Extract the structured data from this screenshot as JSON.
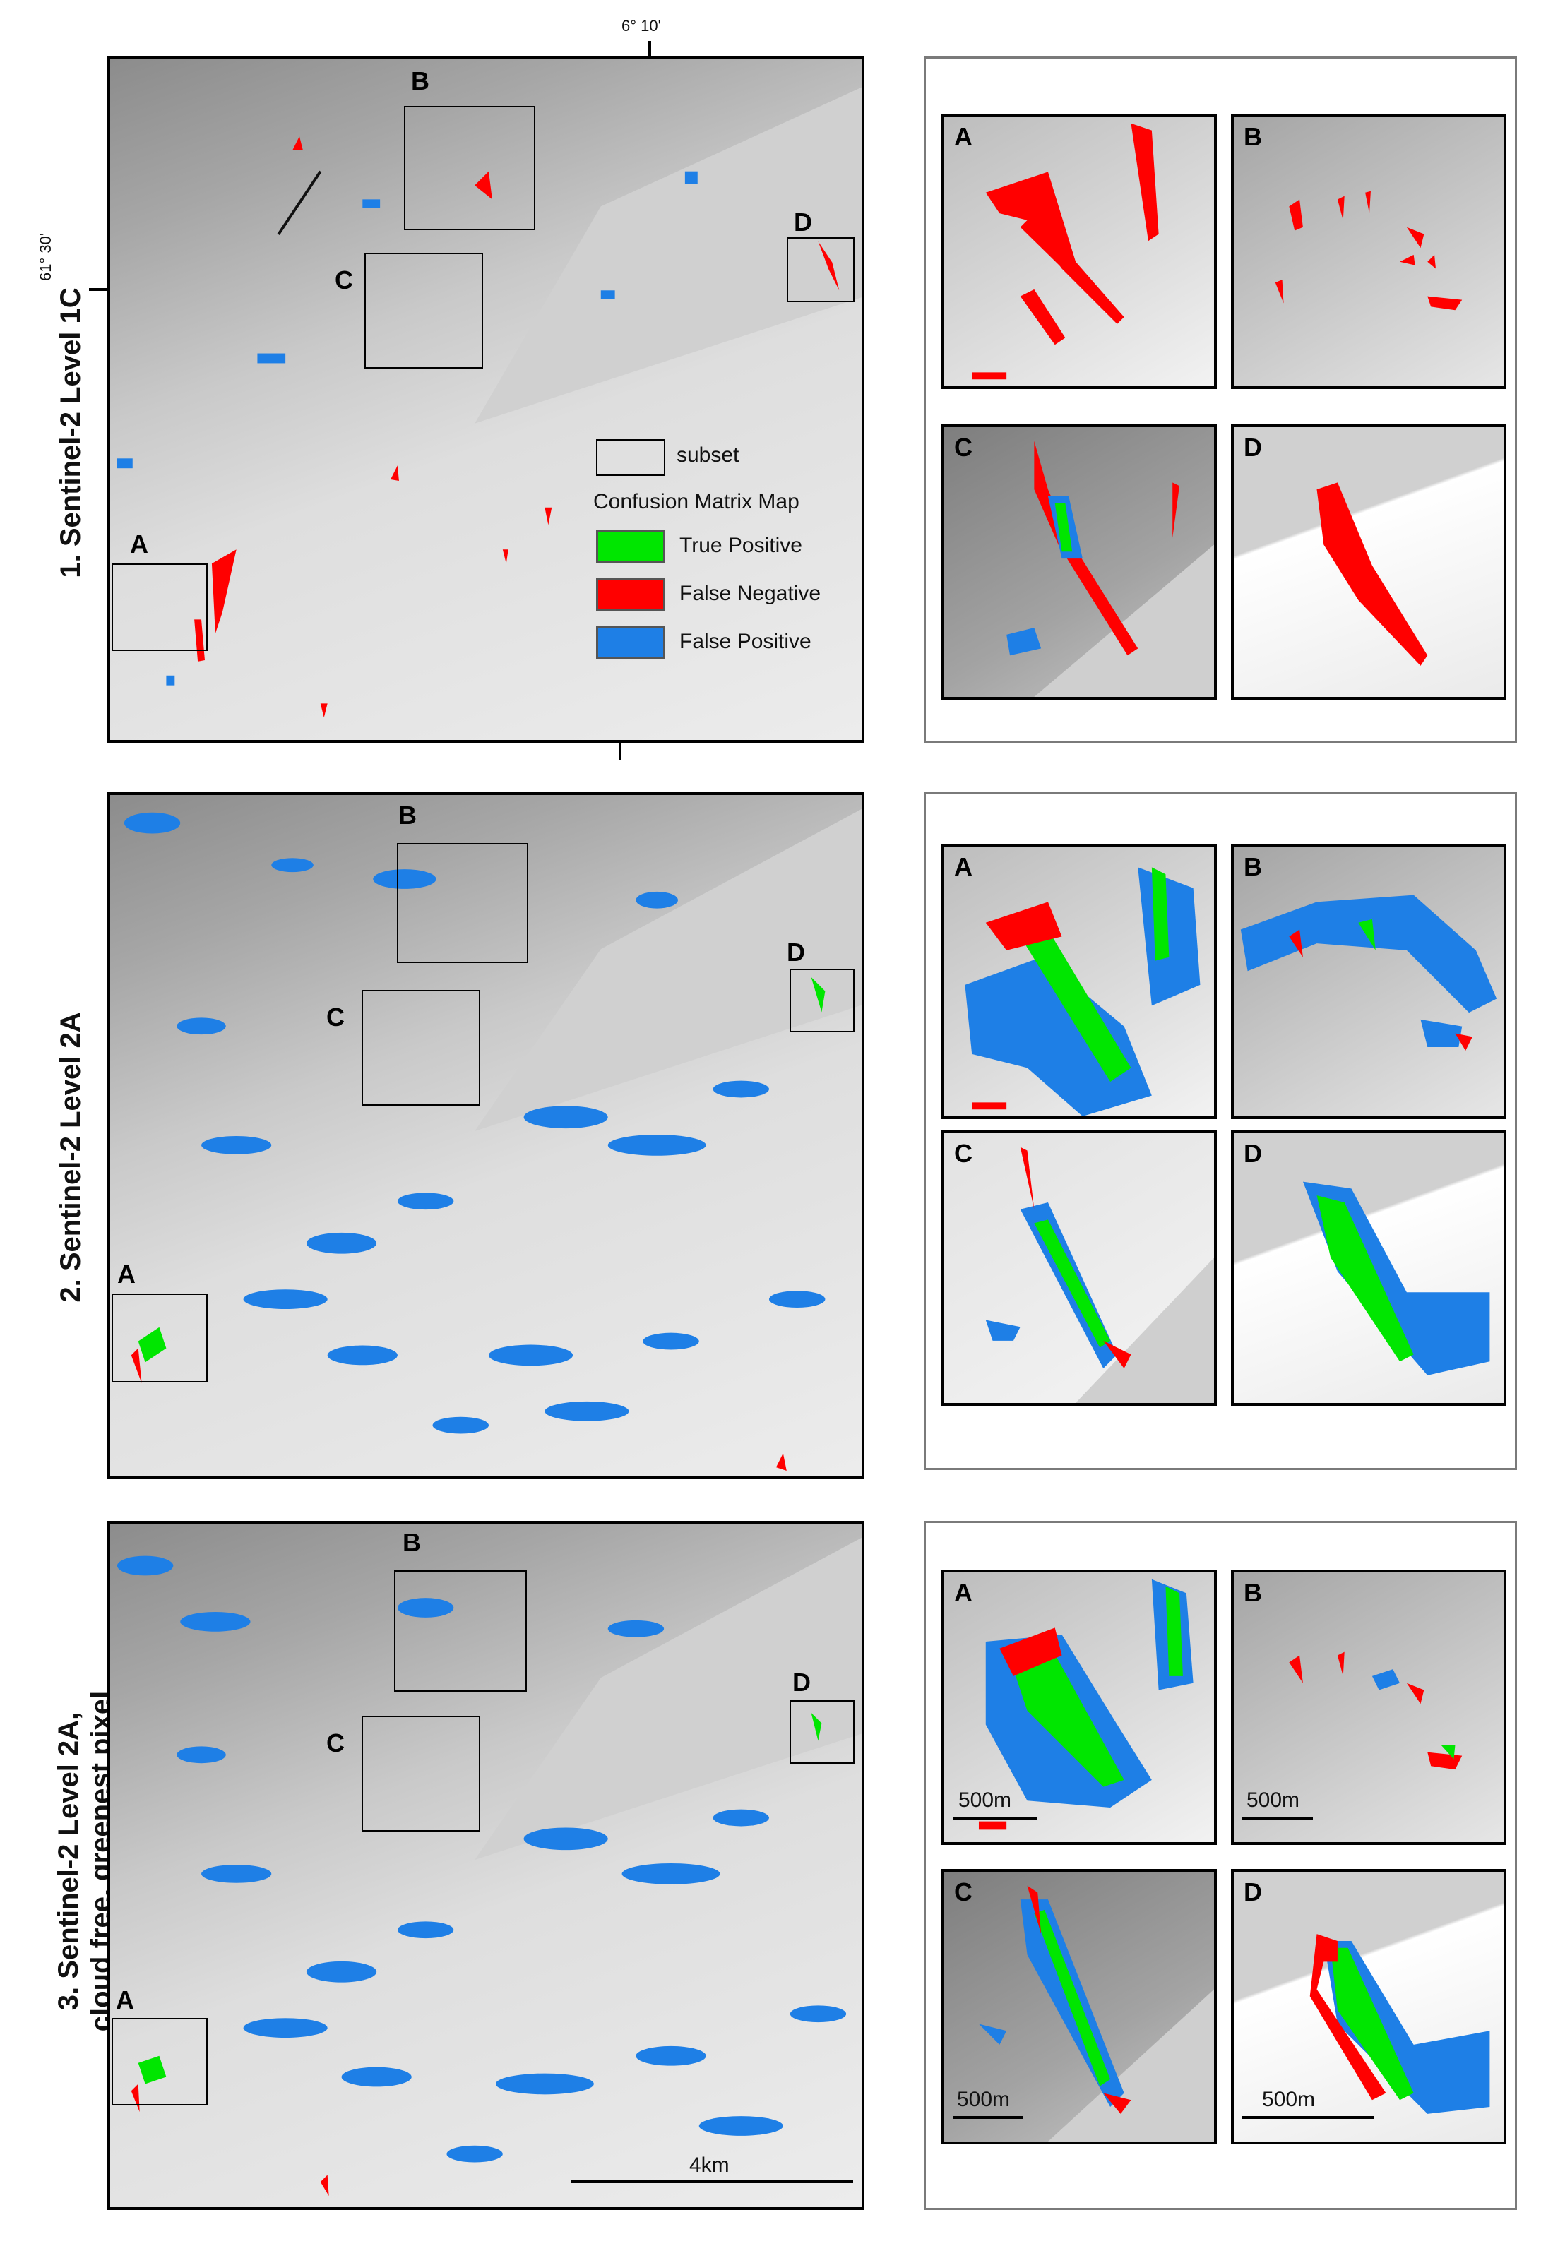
{
  "figure": {
    "rows": [
      {
        "label": "1. Sentinel-2 Level 1C"
      },
      {
        "label": "2. Sentinel-2 Level 2A"
      },
      {
        "label_line1": "3. Sentinel-2 Level 2A,",
        "label_line2": "cloud free, greenest pixel"
      }
    ],
    "box_labels": [
      "A",
      "B",
      "C",
      "D"
    ],
    "coords": {
      "lon": "6° 10'",
      "lat": "61° 30'"
    },
    "legend": {
      "subset_label": "subset",
      "title": "Confusion Matrix Map",
      "items": [
        {
          "label": "True Positive",
          "color": "#00e600"
        },
        {
          "label": "False Negative",
          "color": "#ff0000"
        },
        {
          "label": "False Positive",
          "color": "#1e7fe6"
        }
      ]
    },
    "scale": {
      "main": "4km",
      "inset": "500m"
    }
  }
}
